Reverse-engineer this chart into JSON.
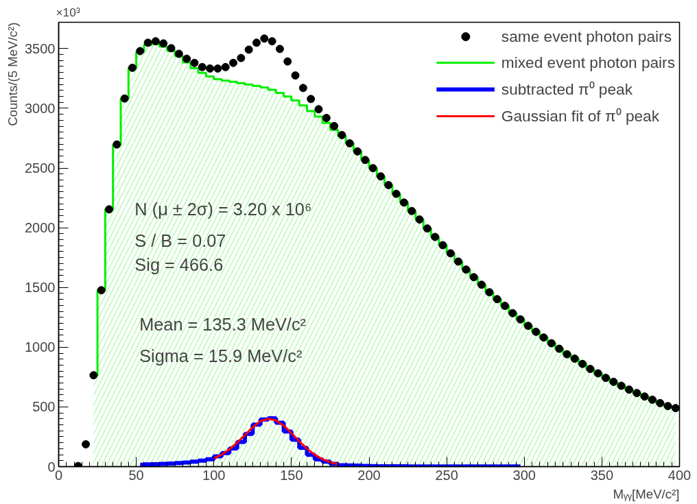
{
  "chart_data": {
    "type": "scatter",
    "xlabel": "Mᵧᵧ[MeV/c²]",
    "ylabel": "Counts/(5 MeV/c²)",
    "xlim": [
      0,
      400
    ],
    "ylim": [
      0,
      3720
    ],
    "xticks": [
      0,
      50,
      100,
      150,
      200,
      250,
      300,
      350,
      400
    ],
    "yticks": [
      0,
      500,
      1000,
      1500,
      2000,
      2500,
      3000,
      3500
    ],
    "grid": false,
    "legend": "top right",
    "annotations": [
      "×10³",
      "N (μ ± 2σ) = 3.20 x 10⁶",
      "S / B = 0.07",
      "Sig = 466.6",
      "Mean = 135.3 MeV/c²",
      "Sigma = 15.9 MeV/c²"
    ],
    "series": [
      {
        "name": "same event photon pairs",
        "marker": "circle",
        "color": "#000000",
        "x": [
          12.5,
          17.5,
          22.5,
          27.5,
          32.5,
          37.5,
          42.5,
          47.5,
          52.5,
          57.5,
          62.5,
          67.5,
          72.5,
          77.5,
          82.5,
          87.5,
          92.5,
          97.5,
          102.5,
          107.5,
          112.5,
          117.5,
          122.5,
          127.5,
          132.5,
          137.5,
          142.5,
          147.5,
          152.5,
          157.5,
          162.5,
          167.5,
          172.5,
          177.5,
          182.5,
          187.5,
          192.5,
          197.5,
          202.5,
          207.5,
          212.5,
          217.5,
          222.5,
          227.5,
          232.5,
          237.5,
          242.5,
          247.5,
          252.5,
          257.5,
          262.5,
          267.5,
          272.5,
          277.5,
          282.5,
          287.5,
          292.5,
          297.5,
          302.5,
          307.5,
          312.5,
          317.5,
          322.5,
          327.5,
          332.5,
          337.5,
          342.5,
          347.5,
          352.5,
          357.5,
          362.5,
          367.5,
          372.5,
          377.5,
          382.5,
          387.5,
          392.5,
          397.5
        ],
        "values": [
          5,
          187,
          765,
          1477,
          2154,
          2697,
          3082,
          3339,
          3479,
          3549,
          3561,
          3543,
          3503,
          3456,
          3415,
          3380,
          3345,
          3333,
          3333,
          3345,
          3380,
          3421,
          3491,
          3549,
          3584,
          3561,
          3497,
          3392,
          3275,
          3170,
          3078,
          2992,
          2919,
          2851,
          2776,
          2707,
          2639,
          2567,
          2499,
          2430,
          2357,
          2284,
          2211,
          2140,
          2069,
          1994,
          1923,
          1854,
          1786,
          1717,
          1650,
          1586,
          1523,
          1460,
          1402,
          1346,
          1285,
          1233,
          1179,
          1129,
          1081,
          1033,
          987,
          941,
          904,
          860,
          818,
          781,
          743,
          710,
          677,
          645,
          616,
          587,
          560,
          532,
          507,
          490
        ]
      },
      {
        "name": "mixed event photon pairs",
        "type": "area",
        "color": "#00ee00",
        "x": [
          22.5,
          27.5,
          32.5,
          37.5,
          42.5,
          47.5,
          52.5,
          57.5,
          62.5,
          67.5,
          72.5,
          77.5,
          82.5,
          87.5,
          92.5,
          97.5,
          102.5,
          107.5,
          112.5,
          117.5,
          122.5,
          127.5,
          132.5,
          137.5,
          142.5,
          147.5,
          152.5,
          157.5,
          162.5,
          167.5,
          172.5,
          177.5,
          182.5,
          187.5,
          192.5,
          197.5,
          202.5,
          207.5,
          212.5,
          217.5,
          222.5,
          227.5,
          232.5,
          237.5,
          242.5,
          247.5,
          252.5,
          257.5,
          262.5,
          267.5,
          272.5,
          277.5,
          282.5,
          287.5,
          292.5,
          297.5,
          302.5,
          307.5,
          312.5,
          317.5,
          322.5,
          327.5,
          332.5,
          337.5,
          342.5,
          347.5,
          352.5,
          357.5,
          362.5,
          367.5,
          372.5,
          377.5,
          382.5,
          387.5,
          392.5,
          397.5
        ],
        "values": [
          765,
          1477,
          2154,
          2697,
          3082,
          3339,
          3473,
          3530,
          3544,
          3516,
          3481,
          3437,
          3384,
          3335,
          3297,
          3267,
          3244,
          3232,
          3222,
          3211,
          3199,
          3187,
          3174,
          3154,
          3129,
          3098,
          3065,
          3024,
          2977,
          2930,
          2878,
          2820,
          2767,
          2707,
          2639,
          2567,
          2499,
          2430,
          2357,
          2284,
          2211,
          2140,
          2069,
          1994,
          1923,
          1854,
          1786,
          1717,
          1650,
          1586,
          1523,
          1460,
          1402,
          1346,
          1285,
          1233,
          1179,
          1129,
          1081,
          1033,
          987,
          941,
          904,
          860,
          818,
          781,
          743,
          710,
          677,
          645,
          616,
          587,
          560,
          532,
          507,
          490
        ]
      },
      {
        "name": "subtracted π⁰ peak",
        "type": "step",
        "color": "#0000ff",
        "x": [
          52.5,
          57.5,
          62.5,
          67.5,
          72.5,
          77.5,
          82.5,
          87.5,
          92.5,
          97.5,
          102.5,
          107.5,
          112.5,
          117.5,
          122.5,
          127.5,
          132.5,
          137.5,
          142.5,
          147.5,
          152.5,
          157.5,
          162.5,
          167.5,
          172.5,
          177.5,
          182.5,
          187.5,
          192.5,
          197.5,
          202.5,
          207.5,
          212.5,
          217.5,
          222.5,
          227.5,
          232.5,
          237.5,
          242.5,
          247.5,
          252.5,
          257.5,
          262.5,
          267.5,
          272.5,
          277.5,
          282.5,
          287.5,
          292.5,
          297.5
        ],
        "values": [
          16,
          18,
          20,
          23,
          26,
          30,
          35,
          42,
          50,
          62,
          86,
          113,
          152,
          206,
          274,
          352,
          395,
          405,
          368,
          294,
          226,
          158,
          99,
          60,
          41,
          23,
          12,
          10,
          8,
          6,
          4,
          3,
          3,
          3,
          3,
          2,
          2,
          2,
          2,
          2,
          2,
          2,
          2,
          2,
          2,
          2,
          2,
          2,
          2,
          2
        ]
      },
      {
        "name": "Gaussian fit of π⁰ peak",
        "type": "line",
        "color": "#ff0000",
        "x": [
          100,
          105,
          110,
          115,
          120,
          125,
          130,
          135,
          140,
          145,
          150,
          155,
          160,
          165,
          170,
          175,
          180
        ],
        "values": [
          70,
          100,
          145,
          200,
          265,
          330,
          380,
          400,
          388,
          345,
          280,
          212,
          150,
          100,
          62,
          36,
          20
        ]
      }
    ]
  }
}
